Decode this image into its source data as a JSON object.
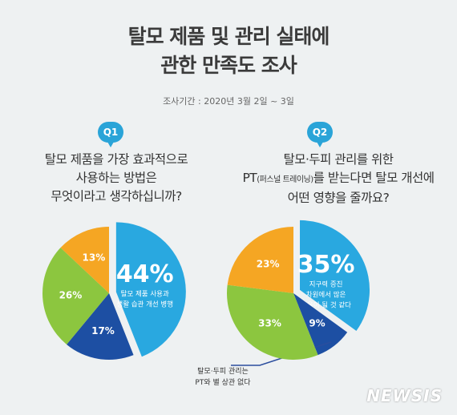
{
  "header": {
    "title_line1": "탈모 제품 및 관리 실태에",
    "title_line2": "관한 만족도 조사",
    "period": "조사기간 : 2020년 3월 2일 ~ 3일"
  },
  "questions": {
    "q1": {
      "badge": "Q1",
      "line1": "탈모 제품을 가장 효과적으로",
      "line2": "사용하는 방법은",
      "line3": "무엇이라고 생각하십니까?"
    },
    "q2": {
      "badge": "Q2",
      "line1": "탈모·두피 관리를 위한",
      "line2_pre": "PT",
      "line2_small": "(퍼스널 트레이닝)",
      "line2_post": "를 받는다면 탈모 개선에",
      "line3": "어떤 영향을 줄까요?"
    }
  },
  "colors": {
    "blue": "#29a8e0",
    "orange": "#f5a623",
    "green": "#8cc63f",
    "navy": "#1d4fa3"
  },
  "chart_data": [
    {
      "type": "pie",
      "title": "탈모 제품을 가장 효과적으로 사용하는 방법은 무엇이라고 생각하십니까?",
      "slices": [
        {
          "value": 44,
          "label": "44%",
          "desc": [
            "탈모 제품 사용과",
            "생활 습관 개선 병행"
          ],
          "color": "#29a8e0"
        },
        {
          "value": 17,
          "label": "17%",
          "desc": [],
          "color": "#1d4fa3"
        },
        {
          "value": 26,
          "label": "26%",
          "desc": [],
          "color": "#8cc63f"
        },
        {
          "value": 13,
          "label": "13%",
          "desc": [],
          "color": "#f5a623"
        }
      ]
    },
    {
      "type": "pie",
      "title": "탈모·두피 관리를 위한 PT(퍼스널 트레이닝)를 받는다면 탈모 개선에 어떤 영향을 줄까요?",
      "slices": [
        {
          "value": 35,
          "label": "35%",
          "desc": [
            "지구력 증진",
            "차원에서 많은",
            "도움이 될 것 같다"
          ],
          "color": "#29a8e0"
        },
        {
          "value": 9,
          "label": "9%",
          "desc": [],
          "callout": [
            "탈모·두피 관리는",
            "PT와 별 상관 없다"
          ],
          "color": "#1d4fa3"
        },
        {
          "value": 33,
          "label": "33%",
          "desc": [],
          "color": "#8cc63f"
        },
        {
          "value": 23,
          "label": "23%",
          "desc": [],
          "color": "#f5a623"
        }
      ]
    }
  ],
  "watermark": "NEWSIS"
}
